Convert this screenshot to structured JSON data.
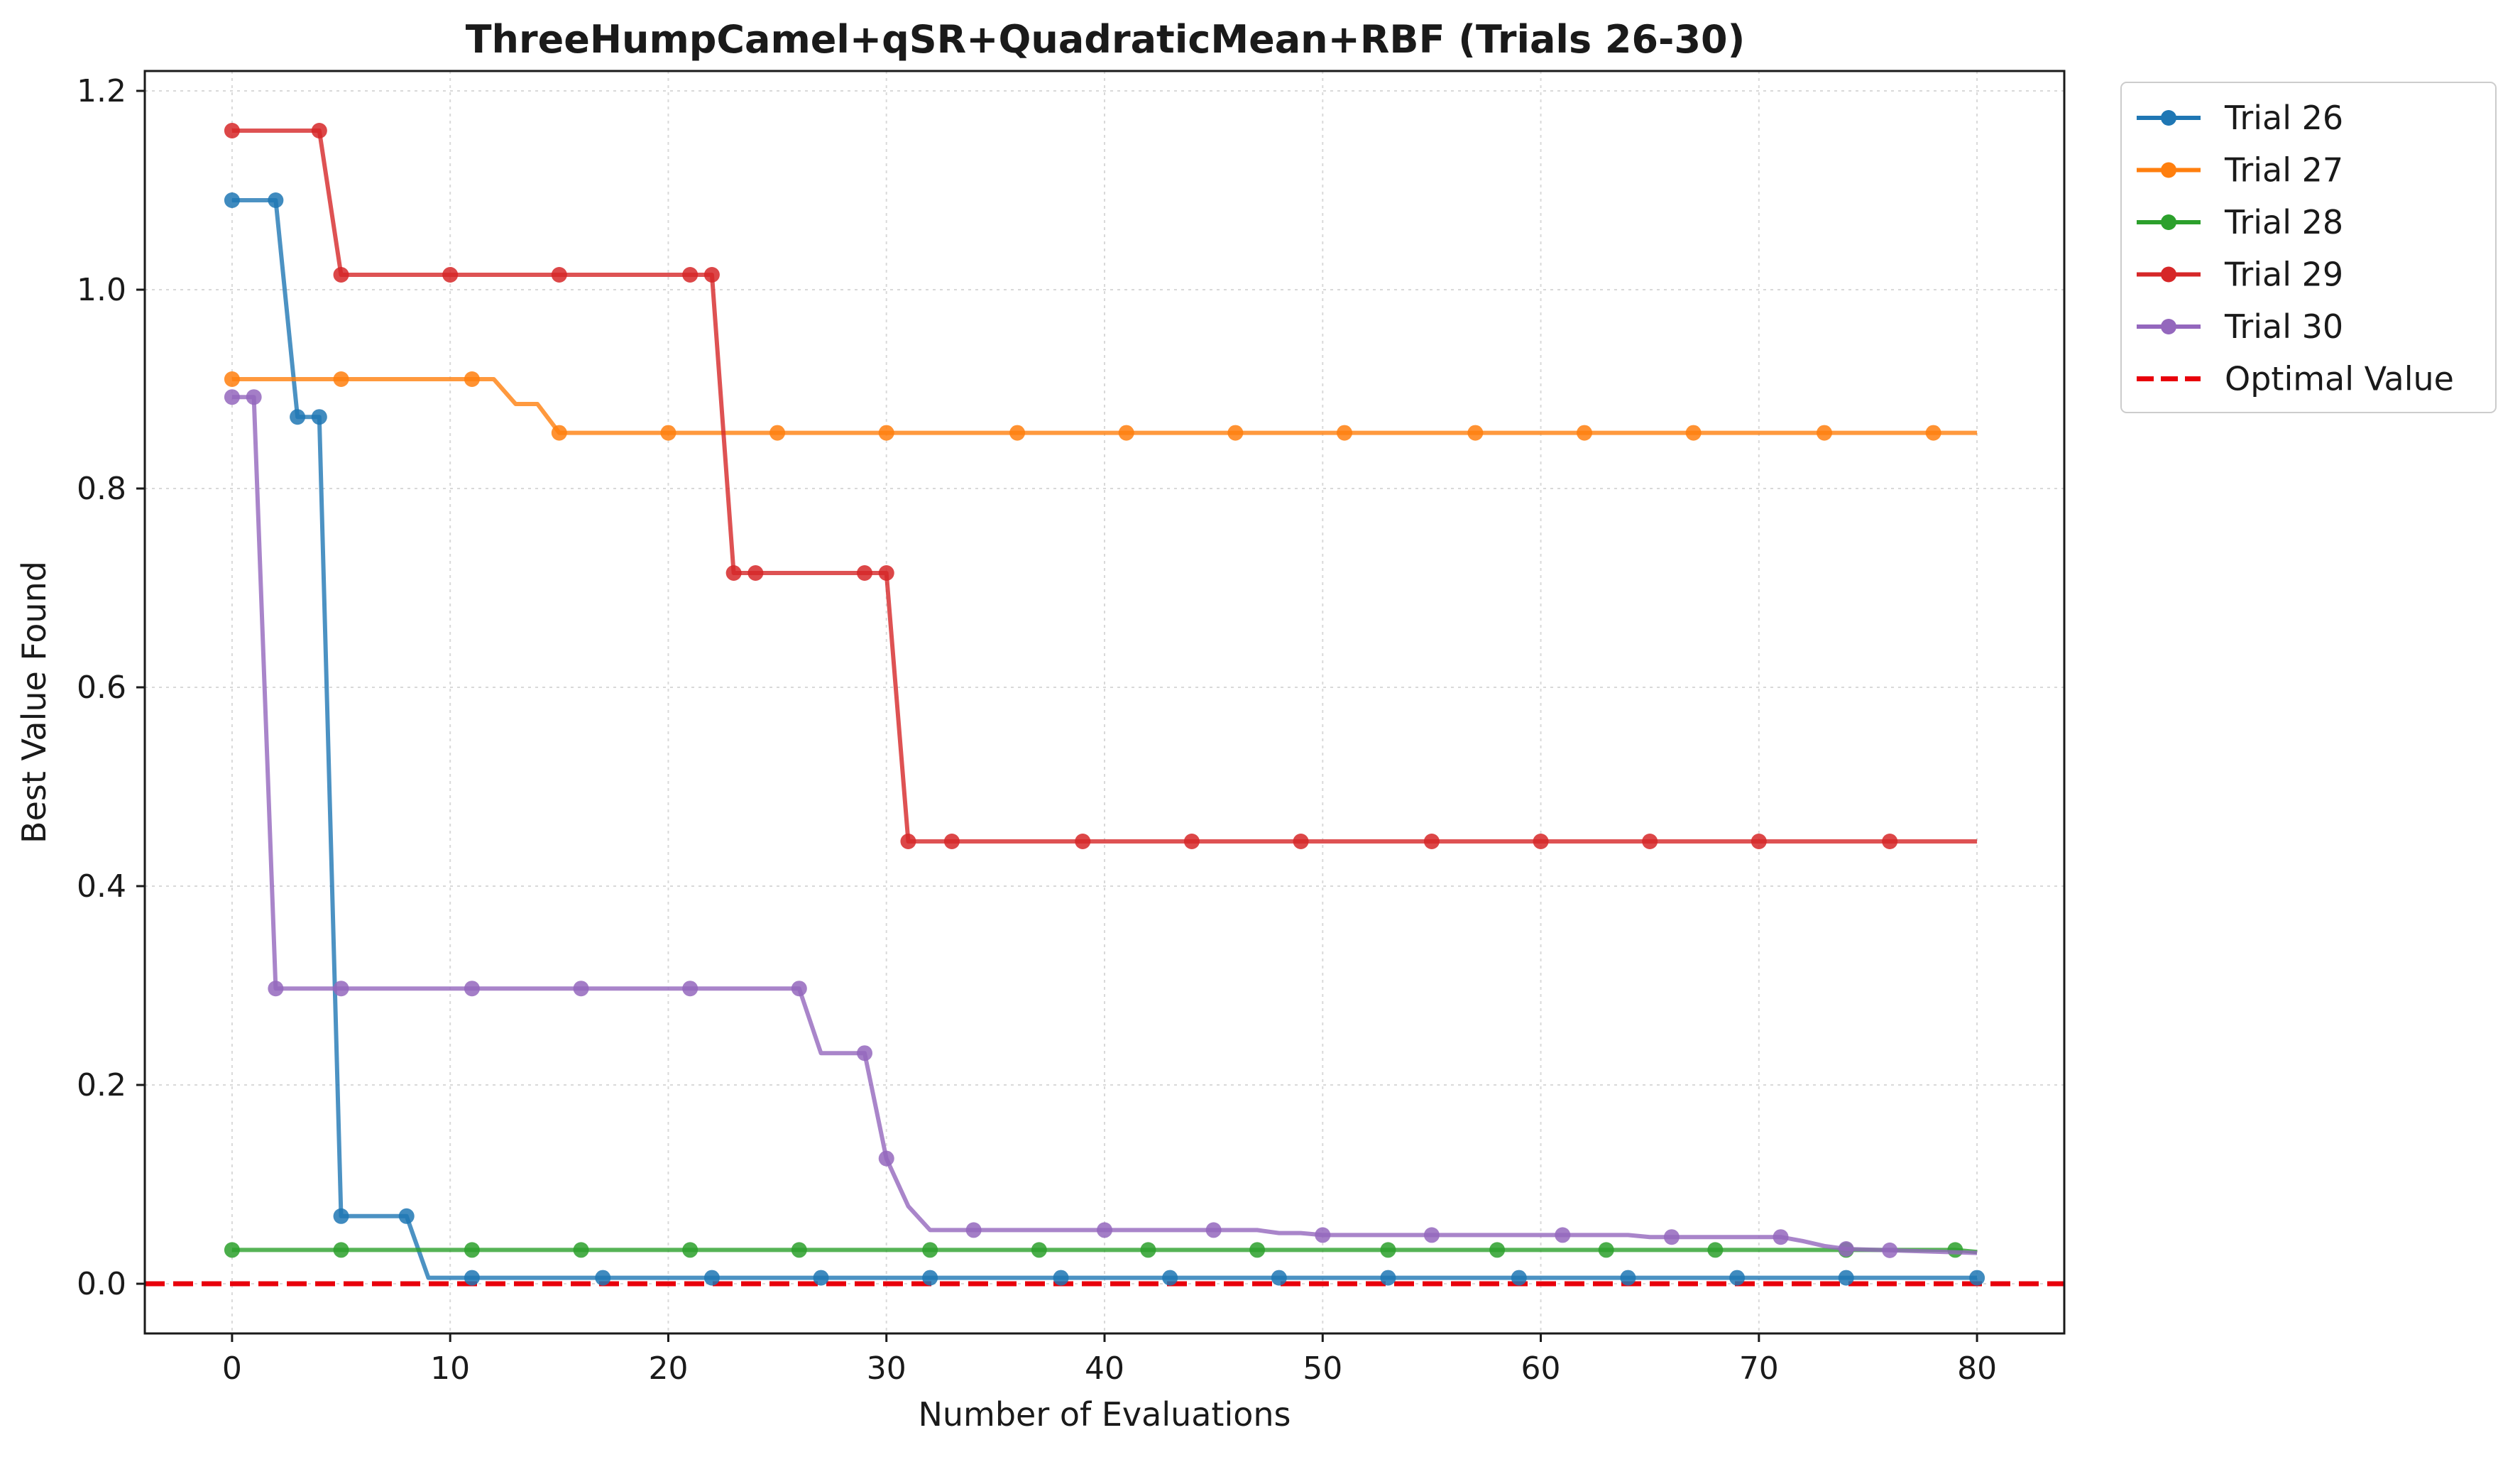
{
  "chart_data": {
    "type": "line",
    "title": "ThreeHumpCamel+qSR+QuadraticMean+RBF (Trials 26-30)",
    "xlabel": "Number of Evaluations",
    "ylabel": "Best Value Found",
    "xlim": [
      -4,
      84
    ],
    "ylim": [
      -0.05,
      1.22
    ],
    "xticks": [
      0,
      10,
      20,
      30,
      40,
      50,
      60,
      70,
      80
    ],
    "yticks": [
      0.0,
      0.2,
      0.4,
      0.6,
      0.8,
      1.0,
      1.2
    ],
    "grid": true,
    "legend_position": "outside-top-right",
    "series": [
      {
        "name": "Trial 26",
        "color": "#1f77b4",
        "points": [
          [
            0,
            1.09
          ],
          [
            2,
            1.09
          ],
          [
            3,
            0.872
          ],
          [
            4,
            0.872
          ],
          [
            5,
            0.068
          ],
          [
            8,
            0.068
          ],
          [
            9,
            0.006
          ],
          [
            80,
            0.006
          ]
        ],
        "markers": [
          0,
          2,
          3,
          4,
          5,
          8,
          11,
          17,
          22,
          27,
          32,
          38,
          43,
          48,
          53,
          59,
          64,
          69,
          74,
          80
        ]
      },
      {
        "name": "Trial 27",
        "color": "#ff7f0e",
        "points": [
          [
            0,
            0.91
          ],
          [
            12,
            0.91
          ],
          [
            13,
            0.885
          ],
          [
            14,
            0.885
          ],
          [
            15,
            0.856
          ],
          [
            80,
            0.856
          ]
        ],
        "markers": [
          0,
          5,
          11,
          15,
          20,
          25,
          30,
          36,
          41,
          46,
          51,
          57,
          62,
          67,
          73,
          78
        ]
      },
      {
        "name": "Trial 28",
        "color": "#2ca02c",
        "points": [
          [
            0,
            0.034
          ],
          [
            79,
            0.034
          ],
          [
            80,
            0.032
          ]
        ],
        "markers": [
          0,
          5,
          11,
          16,
          21,
          26,
          32,
          37,
          42,
          47,
          53,
          58,
          63,
          68,
          74,
          79
        ]
      },
      {
        "name": "Trial 29",
        "color": "#d62728",
        "points": [
          [
            0,
            1.16
          ],
          [
            4,
            1.16
          ],
          [
            5,
            1.015
          ],
          [
            22,
            1.015
          ],
          [
            23,
            0.715
          ],
          [
            30,
            0.715
          ],
          [
            31,
            0.445
          ],
          [
            80,
            0.445
          ]
        ],
        "markers": [
          0,
          4,
          5,
          10,
          15,
          21,
          22,
          23,
          24,
          29,
          30,
          31,
          33,
          39,
          44,
          49,
          55,
          60,
          65,
          70,
          76
        ]
      },
      {
        "name": "Trial 30",
        "color": "#9467bd",
        "points": [
          [
            0,
            0.892
          ],
          [
            1,
            0.892
          ],
          [
            2,
            0.297
          ],
          [
            26,
            0.297
          ],
          [
            27,
            0.232
          ],
          [
            29,
            0.232
          ],
          [
            30,
            0.126
          ],
          [
            31,
            0.078
          ],
          [
            32,
            0.054
          ],
          [
            47,
            0.054
          ],
          [
            48,
            0.051
          ],
          [
            49,
            0.051
          ],
          [
            50,
            0.049
          ],
          [
            64,
            0.049
          ],
          [
            65,
            0.047
          ],
          [
            71,
            0.047
          ],
          [
            72,
            0.043
          ],
          [
            73,
            0.038
          ],
          [
            74,
            0.035
          ],
          [
            80,
            0.031
          ]
        ],
        "markers": [
          0,
          1,
          2,
          5,
          11,
          16,
          21,
          26,
          29,
          30,
          34,
          40,
          45,
          50,
          55,
          61,
          66,
          71,
          74,
          76
        ]
      }
    ],
    "reference_line": {
      "name": "Optimal Value",
      "y": 0.0,
      "color": "#e8000b",
      "style": "dashed"
    }
  }
}
